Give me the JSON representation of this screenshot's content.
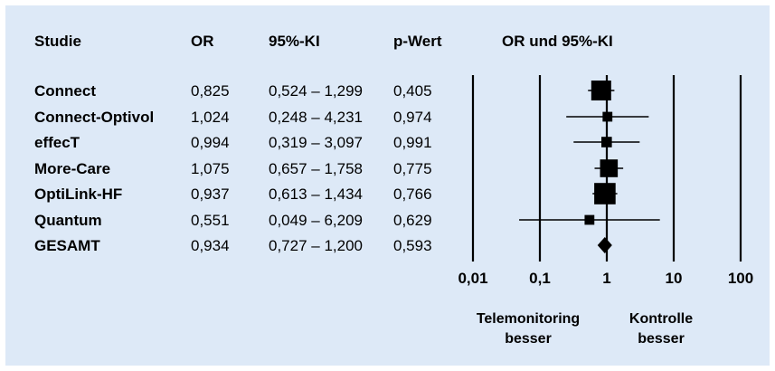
{
  "headers": {
    "study": "Studie",
    "or": "OR",
    "ci": "95%-KI",
    "p": "p-Wert",
    "plot": "OR und 95%-KI"
  },
  "rows": [
    {
      "study": "Connect",
      "or_text": "0,825",
      "ci_text": "0,524 – 1,299",
      "p_text": "0,405"
    },
    {
      "study": "Connect-Optivol",
      "or_text": "1,024",
      "ci_text": "0,248 – 4,231",
      "p_text": "0,974"
    },
    {
      "study": "effecT",
      "or_text": "0,994",
      "ci_text": "0,319 – 3,097",
      "p_text": "0,991"
    },
    {
      "study": "More-Care",
      "or_text": "1,075",
      "ci_text": "0,657 – 1,758",
      "p_text": "0,775"
    },
    {
      "study": "OptiLink-HF",
      "or_text": "0,937",
      "ci_text": "0,613 – 1,434",
      "p_text": "0,766"
    },
    {
      "study": "Quantum",
      "or_text": "0,551",
      "ci_text": "0,049 – 6,209",
      "p_text": "0,629"
    },
    {
      "study": "GESAMT",
      "or_text": "0,934",
      "ci_text": "0,727 – 1,200",
      "p_text": "0,593"
    }
  ],
  "chart_data": {
    "type": "scatter",
    "title": "OR und 95%-KI",
    "x_scale": "log",
    "xlim": [
      0.01,
      100
    ],
    "x_ticks": [
      0.01,
      0.1,
      1,
      10,
      100
    ],
    "x_tick_labels": [
      "0,01",
      "0,1",
      "1",
      "10",
      "100"
    ],
    "grid": true,
    "series": [
      {
        "label": "Connect",
        "or": 0.825,
        "ci_low": 0.524,
        "ci_high": 1.299,
        "marker": "square",
        "weight": 1.0
      },
      {
        "label": "Connect-Optivol",
        "or": 1.024,
        "ci_low": 0.248,
        "ci_high": 4.231,
        "marker": "square",
        "weight": 0.3
      },
      {
        "label": "effecT",
        "or": 0.994,
        "ci_low": 0.319,
        "ci_high": 3.097,
        "marker": "square",
        "weight": 0.35
      },
      {
        "label": "More-Care",
        "or": 1.075,
        "ci_low": 0.657,
        "ci_high": 1.758,
        "marker": "square",
        "weight": 0.85
      },
      {
        "label": "OptiLink-HF",
        "or": 0.937,
        "ci_low": 0.613,
        "ci_high": 1.434,
        "marker": "square",
        "weight": 1.1
      },
      {
        "label": "Quantum",
        "or": 0.551,
        "ci_low": 0.049,
        "ci_high": 6.209,
        "marker": "square",
        "weight": 0.3
      },
      {
        "label": "GESAMT",
        "or": 0.934,
        "ci_low": 0.727,
        "ci_high": 1.2,
        "marker": "diamond",
        "weight": 1.0
      }
    ],
    "direction_left": [
      "Telemonitoring",
      "besser"
    ],
    "direction_right": [
      "Kontrolle",
      "besser"
    ]
  }
}
